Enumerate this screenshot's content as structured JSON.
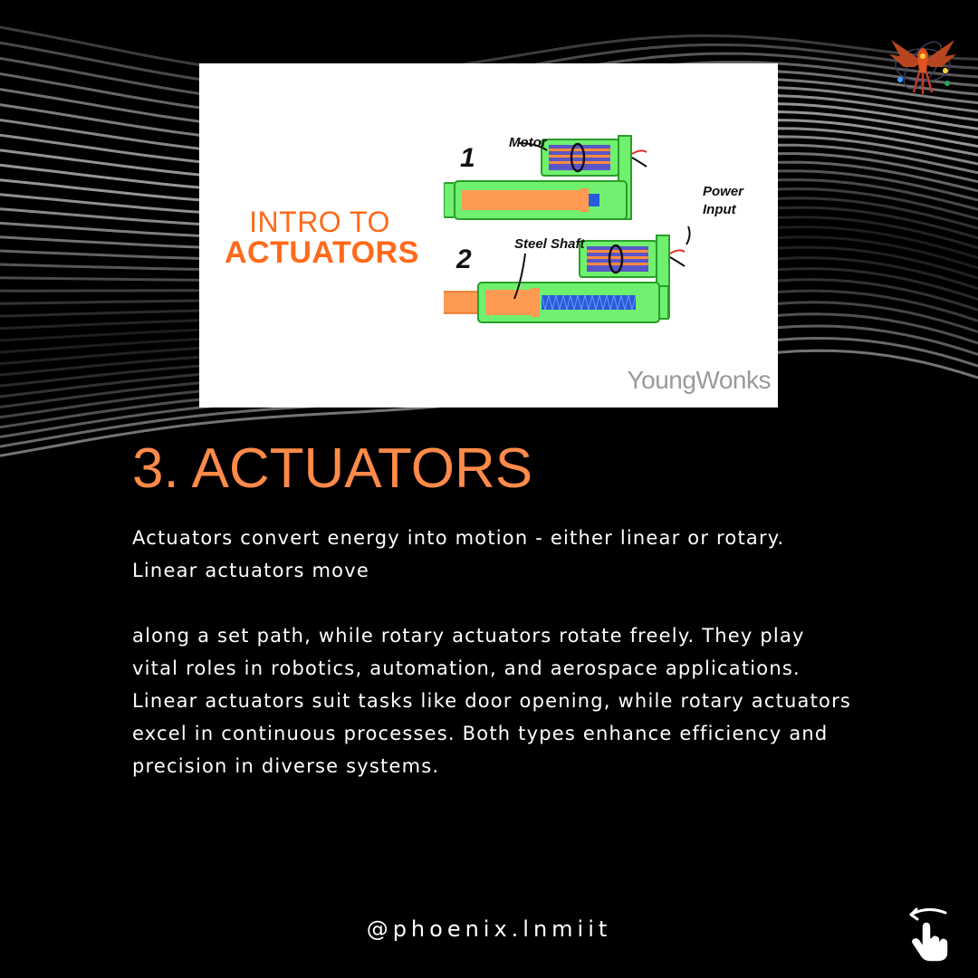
{
  "card": {
    "title_line1": "INTRO TO",
    "title_line2": "ACTUATORS",
    "label_1": "1",
    "label_2": "2",
    "motor_label": "Motor",
    "power_label_line1": "Power",
    "power_label_line2": "Input",
    "shaft_label": "Steel Shaft",
    "brand": "YoungWonks"
  },
  "heading": "3. ACTUATORS",
  "body": {
    "paragraph1": "Actuators convert energy into motion - either linear or rotary. Linear actuators move",
    "paragraph2": "along a set path, while rotary actuators rotate freely. They play vital roles in robotics, automation, and aerospace applications. Linear actuators suit tasks like door opening, while rotary actuators excel in continuous processes. Both types enhance efficiency and precision in diverse systems."
  },
  "footer": {
    "handle": "@phoenix.lnmiit"
  },
  "icons": {
    "logo": "phoenix-logo-icon",
    "swipe": "swipe-hand-icon"
  },
  "colors": {
    "accent": "#ff8a4a",
    "card_title": "#ff6a1a",
    "background": "#000000",
    "text": "#ffffff"
  }
}
